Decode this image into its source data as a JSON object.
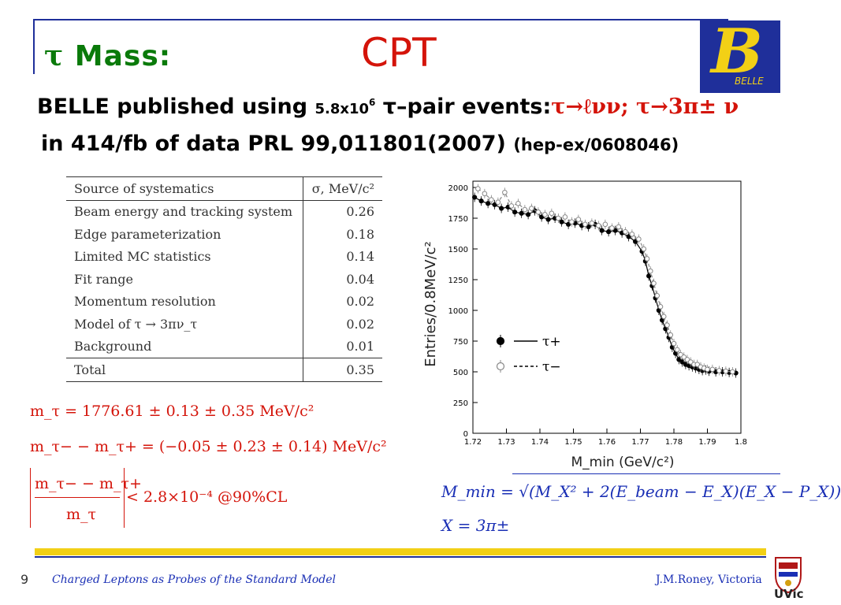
{
  "title": {
    "tau": "τ",
    "text": "Mass:",
    "cpt": "CPT"
  },
  "logo": {
    "letter": "B",
    "label": "BELLE"
  },
  "line1": {
    "prefix": "BELLE published using ",
    "count": "5.8x10",
    "exp": "6",
    "mid": " τ–pair events:",
    "decays": "τ→ℓνν; τ→3π± ν"
  },
  "line2": {
    "text": "in 414/fb of data PRL 99,011801(2007) ",
    "ref": "(hep-ex/0608046)"
  },
  "systematics": {
    "header": [
      "Source of systematics",
      "σ, MeV/c²"
    ],
    "rows": [
      [
        "Beam energy and tracking system",
        "0.26"
      ],
      [
        "Edge parameterization",
        "0.18"
      ],
      [
        "Limited MC statistics",
        "0.14"
      ],
      [
        "Fit range",
        "0.04"
      ],
      [
        "Momentum resolution",
        "0.02"
      ],
      [
        "Model of τ → 3πν_τ",
        "0.02"
      ],
      [
        "Background",
        "0.01"
      ]
    ],
    "total": [
      "Total",
      "0.35"
    ]
  },
  "formulas": {
    "mass": "m_τ = 1776.61 ± 0.13 ± 0.35 MeV/c²",
    "diff": "m_τ− − m_τ+ = (−0.05 ± 0.23 ± 0.14) MeV/c²",
    "ratio_num": "m_τ− − m_τ+",
    "ratio_den": "m_τ",
    "ratio_rest": "< 2.8×10⁻⁴  @90%CL",
    "mmin": "M_min = √(M_X² + 2(E_beam − E_X)(E_X − P_X))",
    "x": "X = 3π±"
  },
  "chart_data": {
    "type": "scatter",
    "xlabel": "M_min (GeV/c²)",
    "ylabel": "Entries/0.8MeV/c²",
    "xlim": [
      1.72,
      1.8
    ],
    "ylim": [
      0,
      2000
    ],
    "x_ticks": [
      "1.72",
      "1.73",
      "1.74",
      "1.75",
      "1.76",
      "1.77",
      "1.78",
      "1.79",
      "1.8"
    ],
    "y_ticks": [
      "0",
      "250",
      "500",
      "750",
      "1000",
      "1250",
      "1500",
      "1750",
      "2000"
    ],
    "legend_position": "middle-left",
    "series": [
      {
        "name": "τ+",
        "marker": "filled",
        "line": "solid",
        "color": "#000000",
        "x": [
          1.7205,
          1.7225,
          1.7245,
          1.7265,
          1.7285,
          1.7305,
          1.7325,
          1.7345,
          1.7365,
          1.7385,
          1.7405,
          1.7425,
          1.7445,
          1.7465,
          1.7485,
          1.7505,
          1.7525,
          1.7545,
          1.7565,
          1.7585,
          1.7605,
          1.7625,
          1.7645,
          1.7665,
          1.7685,
          1.7705,
          1.7715,
          1.7725,
          1.7735,
          1.7745,
          1.7755,
          1.7765,
          1.7775,
          1.7785,
          1.7795,
          1.7805,
          1.7815,
          1.7825,
          1.7835,
          1.7845,
          1.7855,
          1.7865,
          1.7875,
          1.7885,
          1.7895,
          1.7905,
          1.7925,
          1.7945,
          1.7965,
          1.7985
        ],
        "y": [
          1920,
          1890,
          1870,
          1860,
          1830,
          1840,
          1800,
          1790,
          1780,
          1810,
          1760,
          1740,
          1750,
          1720,
          1700,
          1710,
          1690,
          1680,
          1700,
          1650,
          1640,
          1650,
          1630,
          1600,
          1560,
          1480,
          1400,
          1280,
          1200,
          1100,
          1000,
          920,
          850,
          780,
          700,
          650,
          600,
          580,
          560,
          550,
          540,
          530,
          520,
          510,
          515,
          505,
          500,
          500,
          495,
          490
        ]
      },
      {
        "name": "τ−",
        "marker": "open",
        "line": "dashed",
        "color": "#777777",
        "x": [
          1.7215,
          1.7235,
          1.7255,
          1.7275,
          1.7295,
          1.7315,
          1.7335,
          1.7355,
          1.7375,
          1.7395,
          1.7415,
          1.7435,
          1.7455,
          1.7475,
          1.7495,
          1.7515,
          1.7535,
          1.7555,
          1.7575,
          1.7595,
          1.7615,
          1.7635,
          1.7655,
          1.7675,
          1.7695,
          1.771,
          1.772,
          1.773,
          1.774,
          1.775,
          1.776,
          1.777,
          1.778,
          1.779,
          1.78,
          1.781,
          1.782,
          1.783,
          1.784,
          1.785,
          1.786,
          1.787,
          1.788,
          1.789,
          1.79,
          1.7915,
          1.7935,
          1.7955,
          1.7975
        ],
        "y": [
          1990,
          1950,
          1900,
          1880,
          1960,
          1850,
          1870,
          1820,
          1830,
          1800,
          1780,
          1790,
          1750,
          1760,
          1720,
          1740,
          1700,
          1710,
          1690,
          1700,
          1670,
          1680,
          1640,
          1620,
          1580,
          1500,
          1420,
          1320,
          1220,
          1120,
          1030,
          950,
          880,
          800,
          730,
          680,
          640,
          620,
          600,
          580,
          560,
          560,
          540,
          530,
          520,
          520,
          510,
          505,
          500
        ]
      }
    ]
  }
}
